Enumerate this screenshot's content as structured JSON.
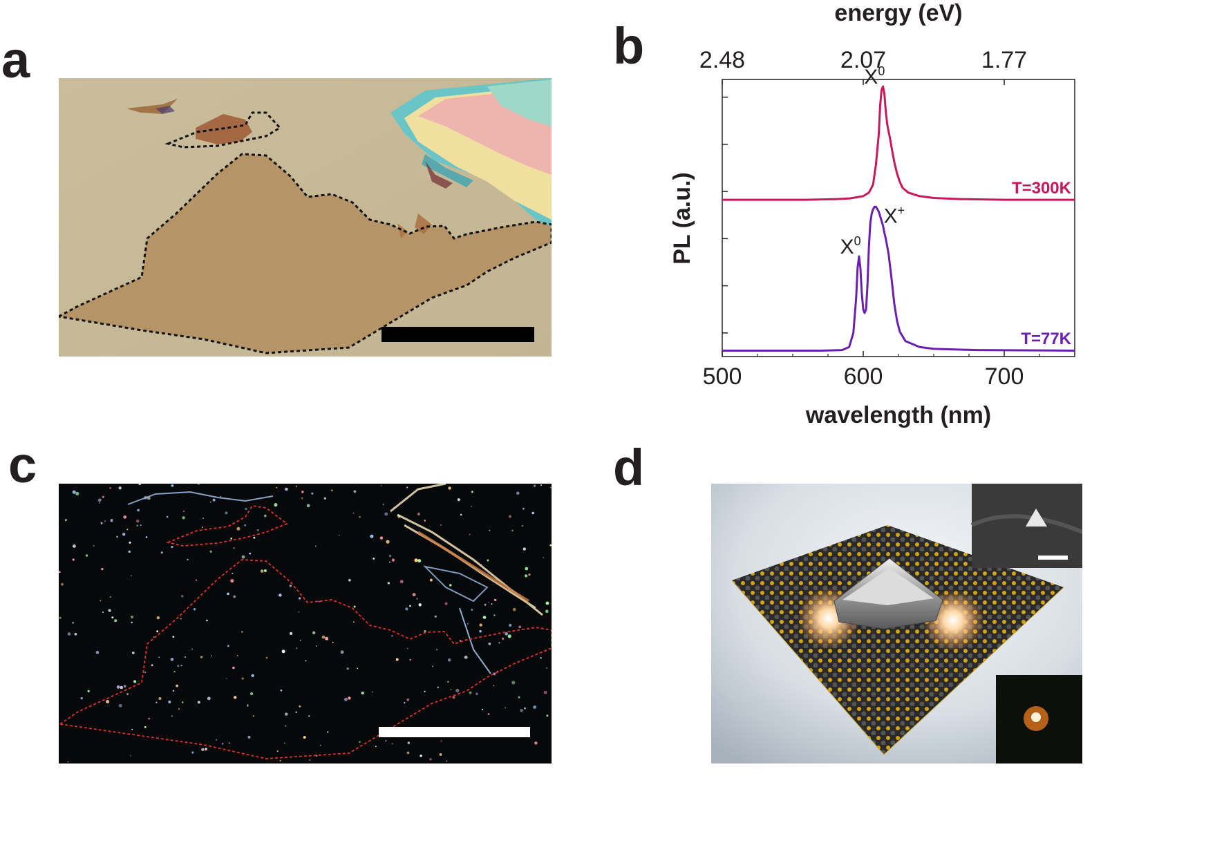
{
  "panels": {
    "a": {
      "letter": "a"
    },
    "b": {
      "letter": "b"
    },
    "c": {
      "letter": "c"
    },
    "d": {
      "letter": "d"
    }
  },
  "chart_data": {
    "type": "line",
    "title": "",
    "xlabel": "wavelength (nm)",
    "ylabel": "PL (a.u.)",
    "top_axis_label": "energy (eV)",
    "xlim": [
      500,
      750
    ],
    "xticks": [
      500,
      600,
      700
    ],
    "xtick_labels": [
      "500",
      "600",
      "700"
    ],
    "top_ticks_nm": [
      500,
      600,
      700
    ],
    "top_tick_labels": [
      "2.48",
      "2.07",
      "1.77"
    ],
    "ylim": [
      0,
      2.35
    ],
    "yticks": [
      0.2,
      0.6,
      1.0,
      1.4,
      1.8,
      2.2
    ],
    "series": [
      {
        "name": "T=300K",
        "color": "#c8185a",
        "offset": 1.28,
        "x": [
          500,
          560,
          580,
          590,
          600,
          604,
          607,
          609,
          611,
          612,
          613,
          614,
          615,
          616,
          617,
          618,
          619,
          620,
          622,
          624,
          626,
          628,
          632,
          640,
          650,
          670,
          700,
          750
        ],
        "y": [
          0.0,
          0.0,
          0.005,
          0.01,
          0.03,
          0.06,
          0.13,
          0.3,
          0.55,
          0.8,
          0.93,
          0.96,
          0.9,
          0.75,
          0.64,
          0.58,
          0.52,
          0.45,
          0.32,
          0.22,
          0.15,
          0.1,
          0.06,
          0.03,
          0.015,
          0.005,
          0.0,
          0.0
        ]
      },
      {
        "name": "T=77K",
        "color": "#6b1fb2",
        "offset": 0.0,
        "x": [
          500,
          570,
          585,
          590,
          593,
          595,
          596,
          597,
          598,
          599,
          600,
          601,
          602,
          603,
          604,
          605,
          606,
          607,
          608,
          609,
          610,
          611,
          612,
          614,
          615,
          616,
          618,
          620,
          622,
          624,
          626,
          630,
          640,
          650,
          680,
          750
        ],
        "y": [
          0.0,
          0.0,
          0.005,
          0.03,
          0.15,
          0.45,
          0.7,
          0.8,
          0.7,
          0.48,
          0.35,
          0.32,
          0.35,
          0.55,
          0.88,
          1.08,
          1.16,
          1.2,
          1.22,
          1.22,
          1.2,
          1.18,
          1.14,
          1.06,
          1.0,
          0.95,
          0.82,
          0.62,
          0.4,
          0.25,
          0.16,
          0.08,
          0.03,
          0.015,
          0.005,
          0.0
        ]
      }
    ],
    "labels": [
      {
        "text": "T=300K",
        "color": "#c8185a",
        "placement": "right, above upper baseline"
      },
      {
        "text": "T=77K",
        "color": "#6b1fb2",
        "placement": "right, above lower baseline"
      }
    ],
    "annotations": [
      {
        "base": "X",
        "sup": "0",
        "series": "T=300K",
        "wavelength": 608
      },
      {
        "base": "X",
        "sup": "0",
        "series": "T=77K",
        "wavelength": 591
      },
      {
        "base": "X",
        "sup": "+",
        "series": "T=77K",
        "wavelength": 622
      }
    ]
  }
}
